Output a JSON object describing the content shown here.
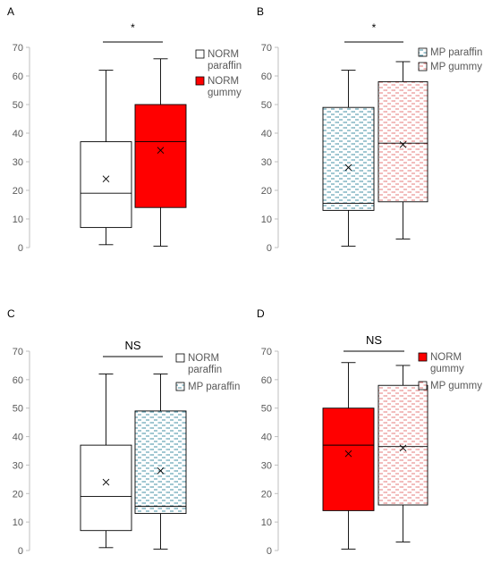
{
  "figure": {
    "colors": {
      "norm_paraffin": "#ffffff",
      "norm_gummy": "#ff0000",
      "mp_paraffin_line": "#31859c",
      "mp_gummy_line": "#e46c6c",
      "axis": "#bfbfbf",
      "stroke": "#000000"
    }
  },
  "chart_data": [
    {
      "type": "box",
      "panel": "A",
      "significance": "*",
      "ylim": [
        0,
        70
      ],
      "yticks": [
        "0",
        "10",
        "20",
        "30",
        "40",
        "50",
        "60",
        "70"
      ],
      "series": [
        {
          "name": "NORM paraffin",
          "name_lines": [
            "NORM",
            "paraffin"
          ],
          "fill": "solid-white",
          "min": 1,
          "q1": 7,
          "median": 19,
          "q3": 37,
          "max": 62,
          "mean": 24
        },
        {
          "name": "NORM gummy",
          "name_lines": [
            "NORM",
            "gummy"
          ],
          "fill": "solid-red",
          "min": 0.5,
          "q1": 14,
          "median": 37,
          "q3": 50,
          "max": 66,
          "mean": 34
        }
      ]
    },
    {
      "type": "box",
      "panel": "B",
      "significance": "*",
      "ylim": [
        0,
        70
      ],
      "yticks": [
        "0",
        "10",
        "20",
        "30",
        "40",
        "50",
        "60",
        "70"
      ],
      "series": [
        {
          "name": "MP paraffin",
          "name_lines": [
            "MP paraffin"
          ],
          "fill": "dashed-teal",
          "min": 0.5,
          "q1": 13,
          "median": 15.5,
          "q3": 49,
          "max": 62,
          "mean": 28
        },
        {
          "name": "MP gummy",
          "name_lines": [
            "MP gummy"
          ],
          "fill": "dashed-red",
          "min": 3,
          "q1": 16,
          "median": 36.5,
          "q3": 58,
          "max": 65,
          "mean": 36
        }
      ]
    },
    {
      "type": "box",
      "panel": "C",
      "significance": "NS",
      "ylim": [
        0,
        70
      ],
      "yticks": [
        "0",
        "10",
        "20",
        "30",
        "40",
        "50",
        "60",
        "70"
      ],
      "series": [
        {
          "name": "NORM paraffin",
          "name_lines": [
            "NORM",
            "paraffin"
          ],
          "fill": "solid-white",
          "min": 1,
          "q1": 7,
          "median": 19,
          "q3": 37,
          "max": 62,
          "mean": 24
        },
        {
          "name": "MP paraffin",
          "name_lines": [
            "MP paraffin"
          ],
          "fill": "dashed-teal",
          "min": 0.5,
          "q1": 13,
          "median": 15.5,
          "q3": 49,
          "max": 62,
          "mean": 28
        }
      ]
    },
    {
      "type": "box",
      "panel": "D",
      "significance": "NS",
      "ylim": [
        0,
        70
      ],
      "yticks": [
        "0",
        "10",
        "20",
        "30",
        "40",
        "50",
        "60",
        "70"
      ],
      "series": [
        {
          "name": "NORM gummy",
          "name_lines": [
            "NORM",
            "gummy"
          ],
          "fill": "solid-red",
          "min": 0.5,
          "q1": 14,
          "median": 37,
          "q3": 50,
          "max": 66,
          "mean": 34
        },
        {
          "name": "MP gummy",
          "name_lines": [
            "MP gummy"
          ],
          "fill": "dashed-red",
          "min": 3,
          "q1": 16,
          "median": 36.5,
          "q3": 58,
          "max": 65,
          "mean": 36
        }
      ]
    }
  ]
}
